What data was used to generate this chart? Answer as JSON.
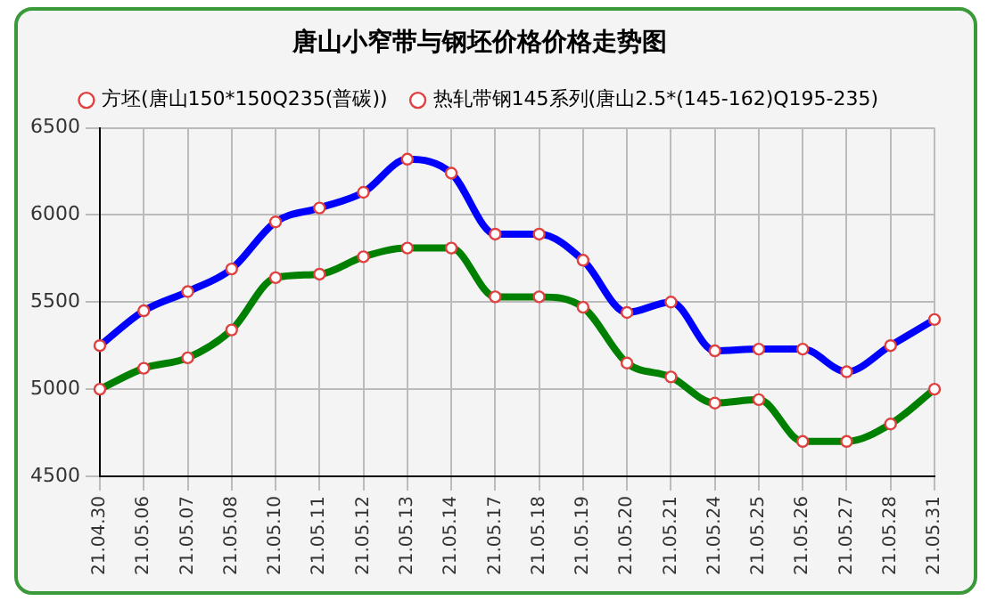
{
  "chart_data": {
    "type": "line",
    "title": "唐山小窄带与钢坯价格价格走势图",
    "categories": [
      "21.04.30",
      "21.05.06",
      "21.05.07",
      "21.05.08",
      "21.05.10",
      "21.05.11",
      "21.05.12",
      "21.05.13",
      "21.05.14",
      "21.05.17",
      "21.05.18",
      "21.05.19",
      "21.05.20",
      "21.05.21",
      "21.05.24",
      "21.05.25",
      "21.05.26",
      "21.05.27",
      "21.05.28",
      "21.05.31"
    ],
    "series": [
      {
        "name": "方坯(唐山150*150Q235(普碳))",
        "color": "#008000",
        "values": [
          5000,
          5120,
          5180,
          5340,
          5640,
          5660,
          5760,
          5810,
          5810,
          5530,
          5530,
          5470,
          5150,
          5070,
          4920,
          4940,
          4700,
          4700,
          4800,
          5000
        ]
      },
      {
        "name": "热轧带钢145系列(唐山2.5*(145-162)Q195-235)",
        "color": "#0000ff",
        "values": [
          5250,
          5450,
          5560,
          5690,
          5960,
          6040,
          6130,
          6320,
          6240,
          5890,
          5890,
          5740,
          5440,
          5500,
          5220,
          5230,
          5230,
          5100,
          5250,
          5400
        ]
      }
    ],
    "ylim": [
      4500,
      6500
    ],
    "yticks": [
      4500,
      5000,
      5500,
      6000,
      6500
    ],
    "grid": true,
    "legend": "top",
    "marker": "circle"
  }
}
